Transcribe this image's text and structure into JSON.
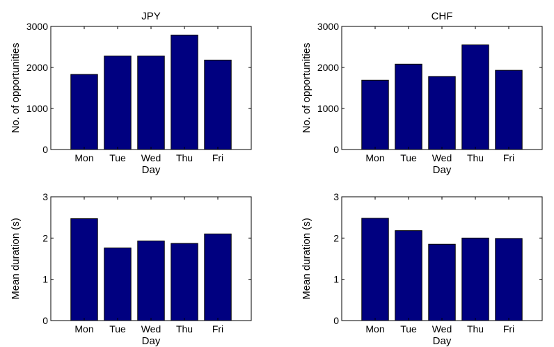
{
  "chart_data": [
    {
      "type": "bar",
      "title": "JPY",
      "categories": [
        "Mon",
        "Tue",
        "Wed",
        "Thu",
        "Fri"
      ],
      "values": [
        1830,
        2280,
        2280,
        2790,
        2180
      ],
      "xlabel": "Day",
      "ylabel": "No. of opportunities",
      "ylim": [
        0,
        3000
      ],
      "yticks": [
        "0",
        "1000",
        "2000",
        "3000"
      ],
      "bar_color": "#000080",
      "grid": false
    },
    {
      "type": "bar",
      "title": "CHF",
      "categories": [
        "Mon",
        "Tue",
        "Wed",
        "Thu",
        "Fri"
      ],
      "values": [
        1690,
        2080,
        1780,
        2550,
        1930
      ],
      "xlabel": "Day",
      "ylabel": "No. of opportunities",
      "ylim": [
        0,
        3000
      ],
      "yticks": [
        "0",
        "1000",
        "2000",
        "3000"
      ],
      "bar_color": "#000080",
      "grid": false
    },
    {
      "type": "bar",
      "title": "",
      "categories": [
        "Mon",
        "Tue",
        "Wed",
        "Thu",
        "Fri"
      ],
      "values": [
        2.47,
        1.76,
        1.93,
        1.87,
        2.1
      ],
      "xlabel": "Day",
      "ylabel": "Mean duration (s)",
      "ylim": [
        0,
        3
      ],
      "yticks": [
        "0",
        "1",
        "2",
        "3"
      ],
      "bar_color": "#000080",
      "grid": false
    },
    {
      "type": "bar",
      "title": "",
      "categories": [
        "Mon",
        "Tue",
        "Wed",
        "Thu",
        "Fri"
      ],
      "values": [
        2.48,
        2.18,
        1.85,
        2.0,
        1.99
      ],
      "xlabel": "Day",
      "ylabel": "Mean duration (s)",
      "ylim": [
        0,
        3
      ],
      "yticks": [
        "0",
        "1",
        "2",
        "3"
      ],
      "bar_color": "#000080",
      "grid": false
    }
  ]
}
